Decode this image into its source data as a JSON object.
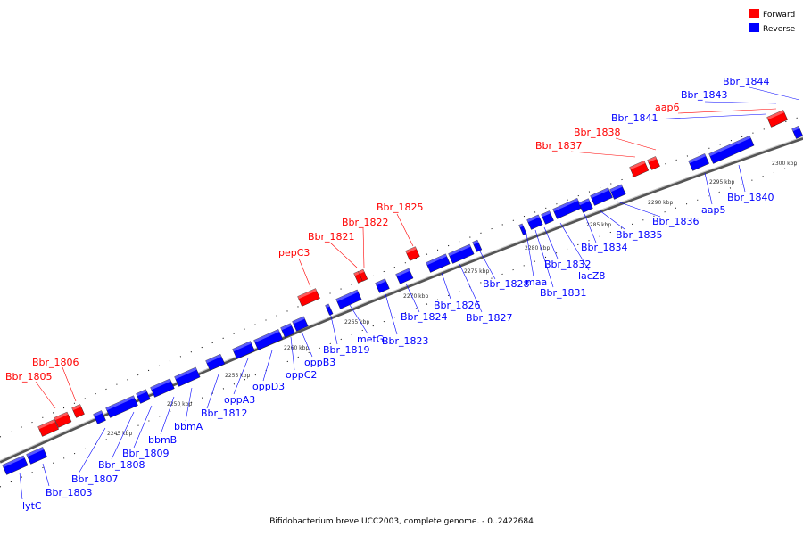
{
  "legend": {
    "forward": {
      "label": "Forward",
      "color": "#ff0000"
    },
    "reverse": {
      "label": "Reverse",
      "color": "#0000ff"
    }
  },
  "caption": "Bifidobacterium breve UCC2003, complete genome. - 0..2422684",
  "axis_unit": "kbp",
  "ticks_kbp": [
    2245,
    2250,
    2255,
    2260,
    2265,
    2270,
    2275,
    2280,
    2285,
    2290,
    2295,
    2300
  ],
  "genes_forward": [
    {
      "label": "Bbr_1805"
    },
    {
      "label": "Bbr_1806"
    },
    {
      "label": "pepC3"
    },
    {
      "label": "Bbr_1821"
    },
    {
      "label": "Bbr_1822"
    },
    {
      "label": "Bbr_1825"
    },
    {
      "label": "Bbr_1837"
    },
    {
      "label": "Bbr_1838"
    },
    {
      "label": "aap6"
    }
  ],
  "genes_reverse": [
    {
      "label": "lytC"
    },
    {
      "label": "Bbr_1803"
    },
    {
      "label": "Bbr_1807"
    },
    {
      "label": "Bbr_1808"
    },
    {
      "label": "Bbr_1809"
    },
    {
      "label": "bbmB"
    },
    {
      "label": "bbmA"
    },
    {
      "label": "Bbr_1812"
    },
    {
      "label": "oppA3"
    },
    {
      "label": "oppD3"
    },
    {
      "label": "oppC2"
    },
    {
      "label": "oppB3"
    },
    {
      "label": "Bbr_1819"
    },
    {
      "label": "metG"
    },
    {
      "label": "Bbr_1823"
    },
    {
      "label": "Bbr_1824"
    },
    {
      "label": "Bbr_1826"
    },
    {
      "label": "Bbr_1827"
    },
    {
      "label": "Bbr_1828"
    },
    {
      "label": "maa"
    },
    {
      "label": "Bbr_1831"
    },
    {
      "label": "Bbr_1832"
    },
    {
      "label": "lacZ8"
    },
    {
      "label": "Bbr_1834"
    },
    {
      "label": "Bbr_1835"
    },
    {
      "label": "Bbr_1836"
    },
    {
      "label": "aap5"
    },
    {
      "label": "Bbr_1840"
    },
    {
      "label": "Bbr_1841"
    },
    {
      "label": "Bbr_1843"
    },
    {
      "label": "Bbr_1844"
    }
  ]
}
